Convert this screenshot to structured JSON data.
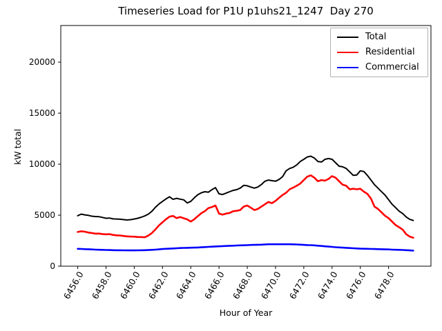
{
  "chart_data": {
    "type": "line",
    "title": "Timeseries Load for P1U p1uhs21_1247  Day 270",
    "xlabel": "Hour of Year",
    "ylabel": "kW total",
    "grid": false,
    "legend_position": "upper right",
    "xlim": [
      6454.8,
      6481.0
    ],
    "ylim": [
      0,
      23590
    ],
    "y_ticks": [
      0,
      5000,
      10000,
      15000,
      20000
    ],
    "y_tick_labels": [
      "0",
      "5000",
      "10000",
      "15000",
      "20000"
    ],
    "x_ticks": [
      6456,
      6458,
      6460,
      6462,
      6464,
      6466,
      6468,
      6470,
      6472,
      6474,
      6476,
      6478
    ],
    "x_tick_labels": [
      "6456.0",
      "6458.0",
      "6460.0",
      "6462.0",
      "6464.0",
      "6466.0",
      "6468.0",
      "6470.0",
      "6472.0",
      "6474.0",
      "6476.0",
      "6478.0"
    ],
    "x": [
      6456.0,
      6456.25,
      6456.5,
      6456.75,
      6457.0,
      6457.25,
      6457.5,
      6457.75,
      6458.0,
      6458.25,
      6458.5,
      6458.75,
      6459.0,
      6459.25,
      6459.5,
      6459.75,
      6460.0,
      6460.25,
      6460.5,
      6460.75,
      6461.0,
      6461.25,
      6461.5,
      6461.75,
      6462.0,
      6462.25,
      6462.5,
      6462.75,
      6463.0,
      6463.25,
      6463.5,
      6463.75,
      6464.0,
      6464.25,
      6464.5,
      6464.75,
      6465.0,
      6465.25,
      6465.5,
      6465.75,
      6466.0,
      6466.25,
      6466.5,
      6466.75,
      6467.0,
      6467.25,
      6467.5,
      6467.75,
      6468.0,
      6468.25,
      6468.5,
      6468.75,
      6469.0,
      6469.25,
      6469.5,
      6469.75,
      6470.0,
      6470.25,
      6470.5,
      6470.75,
      6471.0,
      6471.25,
      6471.5,
      6471.75,
      6472.0,
      6472.25,
      6472.5,
      6472.75,
      6473.0,
      6473.25,
      6473.5,
      6473.75,
      6474.0,
      6474.25,
      6474.5,
      6474.75,
      6475.0,
      6475.25,
      6475.5,
      6475.75,
      6476.0,
      6476.25,
      6476.5,
      6476.75,
      6477.0,
      6477.25,
      6477.5,
      6477.75,
      6478.0,
      6478.25,
      6478.5,
      6478.75,
      6479.0,
      6479.25,
      6479.5,
      6479.75
    ],
    "series": [
      {
        "name": "Total",
        "color": "#000000",
        "width": 2,
        "values": [
          4950,
          5100,
          5030,
          4980,
          4900,
          4870,
          4850,
          4780,
          4700,
          4720,
          4640,
          4620,
          4600,
          4560,
          4530,
          4560,
          4620,
          4700,
          4800,
          4930,
          5100,
          5390,
          5780,
          6100,
          6350,
          6600,
          6800,
          6550,
          6650,
          6570,
          6500,
          6200,
          6350,
          6700,
          7000,
          7200,
          7300,
          7250,
          7500,
          7700,
          7100,
          7020,
          7160,
          7300,
          7430,
          7500,
          7650,
          7920,
          7880,
          7750,
          7650,
          7760,
          8000,
          8330,
          8440,
          8380,
          8330,
          8500,
          8780,
          9350,
          9580,
          9690,
          9920,
          10260,
          10480,
          10710,
          10780,
          10600,
          10260,
          10210,
          10480,
          10550,
          10480,
          10140,
          9800,
          9740,
          9580,
          9240,
          8900,
          8940,
          9350,
          9280,
          8900,
          8450,
          7990,
          7650,
          7310,
          6970,
          6520,
          6070,
          5730,
          5390,
          5160,
          4820,
          4590,
          4480
        ]
      },
      {
        "name": "Residential",
        "color": "#ff0000",
        "width": 2.6,
        "values": [
          3350,
          3420,
          3380,
          3300,
          3250,
          3190,
          3200,
          3150,
          3120,
          3140,
          3060,
          3020,
          3010,
          2960,
          2920,
          2900,
          2890,
          2860,
          2850,
          2830,
          3000,
          3250,
          3600,
          4000,
          4300,
          4600,
          4850,
          4930,
          4710,
          4820,
          4700,
          4590,
          4370,
          4600,
          4900,
          5200,
          5400,
          5700,
          5800,
          5950,
          5160,
          5050,
          5160,
          5220,
          5390,
          5430,
          5500,
          5840,
          5950,
          5730,
          5500,
          5610,
          5840,
          6070,
          6290,
          6180,
          6410,
          6700,
          6980,
          7200,
          7540,
          7700,
          7880,
          8100,
          8440,
          8780,
          8900,
          8670,
          8330,
          8440,
          8380,
          8550,
          8830,
          8670,
          8330,
          7990,
          7880,
          7540,
          7590,
          7540,
          7590,
          7310,
          7090,
          6630,
          5840,
          5610,
          5280,
          4940,
          4710,
          4370,
          4030,
          3810,
          3580,
          3130,
          2900,
          2790
        ]
      },
      {
        "name": "Commercial",
        "color": "#0000ff",
        "width": 2.6,
        "values": [
          1700,
          1690,
          1670,
          1660,
          1640,
          1620,
          1610,
          1600,
          1590,
          1580,
          1570,
          1560,
          1560,
          1555,
          1550,
          1550,
          1550,
          1555,
          1560,
          1570,
          1580,
          1600,
          1620,
          1650,
          1680,
          1700,
          1720,
          1740,
          1760,
          1780,
          1790,
          1800,
          1810,
          1820,
          1830,
          1850,
          1870,
          1890,
          1910,
          1930,
          1950,
          1970,
          1980,
          2000,
          2010,
          2030,
          2040,
          2050,
          2060,
          2080,
          2090,
          2100,
          2110,
          2130,
          2150,
          2150,
          2150,
          2150,
          2150,
          2150,
          2150,
          2140,
          2130,
          2110,
          2090,
          2070,
          2060,
          2040,
          2010,
          1980,
          1950,
          1920,
          1890,
          1860,
          1840,
          1820,
          1800,
          1780,
          1760,
          1740,
          1720,
          1710,
          1700,
          1690,
          1680,
          1670,
          1660,
          1650,
          1640,
          1620,
          1610,
          1600,
          1590,
          1570,
          1550,
          1530
        ]
      }
    ]
  }
}
